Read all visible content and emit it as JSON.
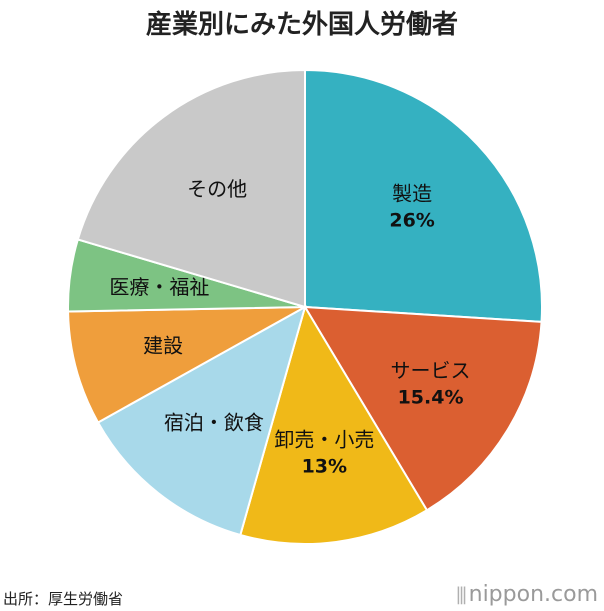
{
  "title": "産業別にみた外国人労働者",
  "source": "出所：厚生労働省",
  "brand": "nippon.com",
  "chart_data": {
    "type": "pie",
    "start_angle_deg": 0,
    "direction": "clockwise",
    "slices": [
      {
        "label": "製造",
        "value": 26,
        "value_label": "26%",
        "color": "#35b1c1"
      },
      {
        "label": "サービス",
        "value": 15.4,
        "value_label": "15.4%",
        "color": "#db5f31"
      },
      {
        "label": "卸売・小売",
        "value": 13,
        "value_label": "13%",
        "color": "#f0b918"
      },
      {
        "label": "宿泊・飲食",
        "value": 12.5,
        "value_label": "",
        "color": "#a8d9ea"
      },
      {
        "label": "建設",
        "value": 7.8,
        "value_label": "",
        "color": "#ef9e3c"
      },
      {
        "label": "医療・福祉",
        "value": 4.9,
        "value_label": "",
        "color": "#7dc383"
      },
      {
        "label": "その他",
        "value": 20.4,
        "value_label": "",
        "color": "#c9c9c9"
      }
    ]
  }
}
